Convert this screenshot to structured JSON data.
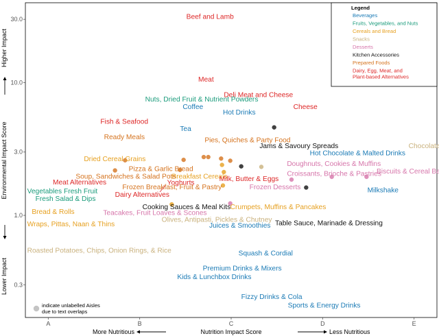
{
  "chart_data": {
    "type": "scatter",
    "xlabel": "Nutrition Impact Score",
    "ylabel": "Environmental Impact Score",
    "x_categories": [
      "A",
      "B",
      "C",
      "D",
      "E"
    ],
    "xlim": [
      0.75,
      5.25
    ],
    "ylim": [
      0.17,
      40
    ],
    "y_scale": "log",
    "y_ticks": [
      0.3,
      1.0,
      3.0,
      10.0,
      30.0
    ],
    "y_tick_labels": [
      "0.3",
      "1.0",
      "3.0",
      "10.0",
      "30.0"
    ],
    "x_annotations": {
      "left": "More Nutritious",
      "right": "Less Nutritious"
    },
    "y_annotations": {
      "top": "Higher Impact",
      "bottom": "Lower Impact"
    },
    "note": "indicate unlabelled Aisles due to text overlaps",
    "legend": {
      "title": "Legend",
      "position": "top-right",
      "entries": [
        {
          "name": "Beverages",
          "color": "#1a7ab5"
        },
        {
          "name": "Fruits, Vegetables, and Nuts",
          "color": "#1a9b7b"
        },
        {
          "name": "Cereals and Bread",
          "color": "#e6a020"
        },
        {
          "name": "Snacks",
          "color": "#c9b17d"
        },
        {
          "name": "Desserts",
          "color": "#d675aa"
        },
        {
          "name": "Kitchen Accessories",
          "color": "#111111"
        },
        {
          "name": "Prepared Foods",
          "color": "#d5731e"
        },
        {
          "name": "Dairy, Egg, Meat, and Plant-based Alternatives",
          "color": "#dd2626"
        }
      ]
    },
    "labels": [
      {
        "text": "Beef and Lamb",
        "x": 2.51,
        "y": 31.5,
        "group": "Dairy, Egg, Meat, and Plant-based Alternatives"
      },
      {
        "text": "Meat",
        "x": 2.64,
        "y": 10.6,
        "group": "Dairy, Egg, Meat, and Plant-based Alternatives"
      },
      {
        "text": "Deli Meat and Cheese",
        "x": 2.92,
        "y": 8.1,
        "group": "Dairy, Egg, Meat, and Plant-based Alternatives"
      },
      {
        "text": "Nuts, Dried Fruit & Nutrient Powders",
        "x": 2.06,
        "y": 7.5,
        "group": "Fruits, Vegetables, and Nuts"
      },
      {
        "text": "Coffee",
        "x": 2.47,
        "y": 6.6,
        "group": "Beverages"
      },
      {
        "text": "Hot Drinks",
        "x": 2.91,
        "y": 6.0,
        "group": "Beverages"
      },
      {
        "text": "Cheese",
        "x": 3.68,
        "y": 6.6,
        "group": "Dairy, Egg, Meat, and Plant-based Alternatives"
      },
      {
        "text": "Fish & Seafood",
        "x": 1.57,
        "y": 5.1,
        "group": "Dairy, Egg, Meat, and Plant-based Alternatives"
      },
      {
        "text": "Tea",
        "x": 2.44,
        "y": 4.5,
        "group": "Beverages"
      },
      {
        "text": "Ready Meals",
        "x": 1.61,
        "y": 3.9,
        "group": "Prepared Foods"
      },
      {
        "text": "Pies, Quiches & Party Food",
        "x": 2.71,
        "y": 3.7,
        "group": "Prepared Foods"
      },
      {
        "text": "Jams & Savoury Spreads",
        "x": 3.31,
        "y": 3.34,
        "group": "Kitchen Accessories"
      },
      {
        "text": "Chocolate",
        "x": 4.94,
        "y": 3.34,
        "group": "Snacks"
      },
      {
        "text": "Hot Chocolate & Malted Drinks",
        "x": 3.86,
        "y": 2.96,
        "group": "Beverages"
      },
      {
        "text": "Dried Cereal Grains",
        "x": 1.39,
        "y": 2.67,
        "group": "Cereals and Bread"
      },
      {
        "text": "Doughnuts, Cookies & Muffins",
        "x": 3.61,
        "y": 2.45,
        "group": "Desserts"
      },
      {
        "text": "Pizza & Garlic Bread",
        "x": 1.88,
        "y": 2.25,
        "group": "Prepared Foods"
      },
      {
        "text": "Croissants, Brioche & Pastries",
        "x": 3.61,
        "y": 2.07,
        "group": "Desserts"
      },
      {
        "text": "Biscuits & Cereal Bars",
        "x": 4.59,
        "y": 2.16,
        "group": "Desserts"
      },
      {
        "text": "Breakfast Cereals",
        "x": 2.35,
        "y": 1.97,
        "group": "Cereals and Bread"
      },
      {
        "text": "Soup, Sandwiches & Salad Pots",
        "x": 1.3,
        "y": 1.97,
        "group": "Prepared Foods"
      },
      {
        "text": "Milk, Butter & Eggs",
        "x": 2.87,
        "y": 1.89,
        "group": "Dairy, Egg, Meat, and Plant-based Alternatives"
      },
      {
        "text": "Meat Alternatives",
        "x": 1.05,
        "y": 1.78,
        "group": "Dairy, Egg, Meat, and Plant-based Alternatives"
      },
      {
        "text": "Yoghurts",
        "x": 2.3,
        "y": 1.77,
        "group": "Dairy, Egg, Meat, and Plant-based Alternatives"
      },
      {
        "text": "Frozen Desserts",
        "x": 3.2,
        "y": 1.64,
        "group": "Desserts"
      },
      {
        "text": "Frozen Breakfast, Fruit & Pastry",
        "x": 1.81,
        "y": 1.64,
        "group": "Prepared Foods"
      },
      {
        "text": "Milkshake",
        "x": 4.49,
        "y": 1.55,
        "group": "Beverages"
      },
      {
        "text": "Vegetables",
        "x": 0.77,
        "y": 1.53,
        "group": "Fruits, Vegetables, and Nuts"
      },
      {
        "text": "Fresh Fruit",
        "x": 1.17,
        "y": 1.53,
        "group": "Fruits, Vegetables, and Nuts"
      },
      {
        "text": "Dairy Alternatives",
        "x": 1.73,
        "y": 1.44,
        "group": "Dairy, Egg, Meat, and Plant-based Alternatives"
      },
      {
        "text": "Fresh Salad & Dips",
        "x": 0.86,
        "y": 1.34,
        "group": "Fruits, Vegetables, and Nuts"
      },
      {
        "text": "Crumpets, Muffins & Pancakes",
        "x": 2.99,
        "y": 1.16,
        "group": "Cereals and Bread"
      },
      {
        "text": "Cooking Sauces & Meal Kits",
        "x": 2.03,
        "y": 1.16,
        "group": "Kitchen Accessories"
      },
      {
        "text": "Bread & Rolls",
        "x": 0.82,
        "y": 1.07,
        "group": "Cereals and Bread"
      },
      {
        "text": "Teacakes, Fruit Loaves & Scones",
        "x": 1.6,
        "y": 1.05,
        "group": "Desserts"
      },
      {
        "text": "Olives, Antipasti, Pickles & Chutney",
        "x": 2.24,
        "y": 0.93,
        "group": "Snacks"
      },
      {
        "text": "Wraps, Pittas, Naan & Thins",
        "x": 0.77,
        "y": 0.86,
        "group": "Cereals and Bread"
      },
      {
        "text": "Table Sauce, Marinade & Dressing",
        "x": 3.48,
        "y": 0.88,
        "group": "Kitchen Accessories"
      },
      {
        "text": "Juices & Smoothies",
        "x": 2.76,
        "y": 0.84,
        "group": "Beverages"
      },
      {
        "text": "Roasted Potatoes, Chips, Onion Rings, & Rice",
        "x": 0.77,
        "y": 0.545,
        "group": "Snacks"
      },
      {
        "text": "Squash & Cordial",
        "x": 3.08,
        "y": 0.52,
        "group": "Beverages"
      },
      {
        "text": "Premium Drinks & Mixers",
        "x": 2.69,
        "y": 0.4,
        "group": "Beverages"
      },
      {
        "text": "Kids & Lunchbox Drinks",
        "x": 2.41,
        "y": 0.345,
        "group": "Beverages"
      },
      {
        "text": "Fizzy Drinks & Cola",
        "x": 3.11,
        "y": 0.245,
        "group": "Beverages"
      },
      {
        "text": "Sports & Energy Drinks",
        "x": 3.62,
        "y": 0.21,
        "group": "Beverages"
      }
    ],
    "points": [
      {
        "x": 1.84,
        "y": 2.6,
        "group": "Prepared Foods"
      },
      {
        "x": 2.48,
        "y": 2.62,
        "group": "Prepared Foods"
      },
      {
        "x": 2.7,
        "y": 2.75,
        "group": "Prepared Foods"
      },
      {
        "x": 2.75,
        "y": 2.75,
        "group": "Prepared Foods"
      },
      {
        "x": 2.89,
        "y": 2.68,
        "group": "Prepared Foods"
      },
      {
        "x": 2.99,
        "y": 2.58,
        "group": "Prepared Foods"
      },
      {
        "x": 1.73,
        "y": 2.18,
        "group": "Prepared Foods"
      },
      {
        "x": 2.44,
        "y": 2.2,
        "group": "Prepared Foods"
      },
      {
        "x": 2.9,
        "y": 2.4,
        "group": "Cereals and Bread"
      },
      {
        "x": 2.92,
        "y": 2.12,
        "group": "Cereals and Bread"
      },
      {
        "x": 2.91,
        "y": 1.68,
        "group": "Cereals and Bread"
      },
      {
        "x": 2.35,
        "y": 1.21,
        "group": "Cereals and Bread"
      },
      {
        "x": 3.11,
        "y": 2.34,
        "group": "Kitchen Accessories"
      },
      {
        "x": 3.47,
        "y": 4.6,
        "group": "Kitchen Accessories"
      },
      {
        "x": 3.82,
        "y": 1.62,
        "group": "Kitchen Accessories"
      },
      {
        "x": 2.99,
        "y": 1.23,
        "group": "Desserts"
      },
      {
        "x": 3.66,
        "y": 1.86,
        "group": "Desserts"
      },
      {
        "x": 4.1,
        "y": 1.95,
        "group": "Desserts"
      },
      {
        "x": 4.48,
        "y": 1.95,
        "group": "Desserts"
      },
      {
        "x": 3.33,
        "y": 2.32,
        "group": "Snacks"
      }
    ]
  }
}
